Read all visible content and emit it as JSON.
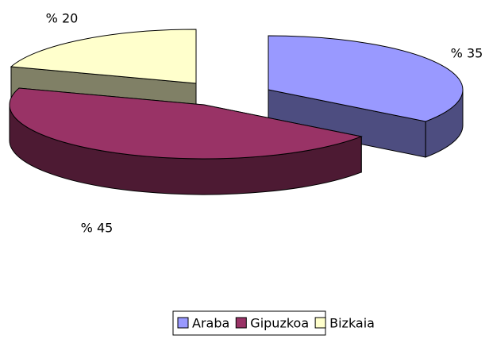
{
  "chart_data": {
    "type": "pie3d",
    "categories": [
      "Araba",
      "Gipuzkoa",
      "Bizkaia"
    ],
    "values": [
      35,
      45,
      20
    ],
    "value_labels": [
      "% 35",
      "% 45",
      "% 20"
    ],
    "colors": [
      "#9999ff",
      "#993366",
      "#ffffcc"
    ],
    "legend": "bottom"
  }
}
